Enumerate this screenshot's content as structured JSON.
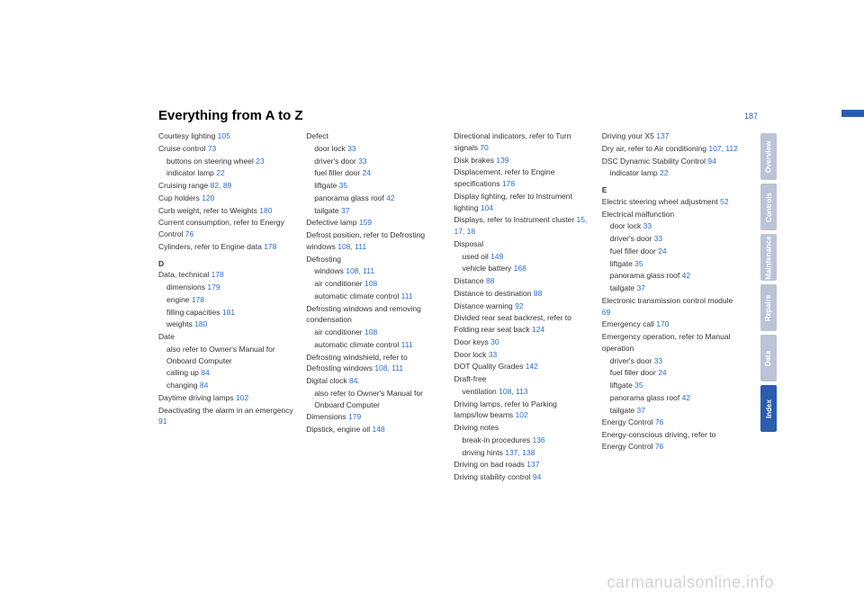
{
  "pageNumber": "187",
  "title": "Everything from A to Z",
  "watermark": "carmanualsonline.info",
  "tabs": [
    {
      "label": "Overview",
      "cls": "tab-muted"
    },
    {
      "label": "Controls",
      "cls": "tab-muted"
    },
    {
      "label": "Maintenance",
      "cls": "tab-muted"
    },
    {
      "label": "Repairs",
      "cls": "tab-muted"
    },
    {
      "label": "Data",
      "cls": "tab-muted"
    },
    {
      "label": "Index",
      "cls": "tab-index"
    }
  ],
  "cols": [
    [
      {
        "t": "Courtesy lighting ",
        "r": "105"
      },
      {
        "t": "Cruise control ",
        "r": "73"
      },
      {
        "t": "buttons on steering wheel ",
        "r": "23",
        "s": 1
      },
      {
        "t": "indicator lamp ",
        "r": "22",
        "s": 1
      },
      {
        "t": "Cruising range ",
        "r": "82, 89"
      },
      {
        "t": "Cup holders ",
        "r": "120"
      },
      {
        "t": "Curb weight, refer to Weights ",
        "r": "180"
      },
      {
        "t": "Current consumption, refer to Energy Control ",
        "r": "76"
      },
      {
        "t": "Cylinders, refer to Engine data ",
        "r": "178"
      },
      {
        "sec": "D"
      },
      {
        "t": "Data, technical ",
        "r": "178"
      },
      {
        "t": "dimensions ",
        "r": "179",
        "s": 1
      },
      {
        "t": "engine ",
        "r": "178",
        "s": 1
      },
      {
        "t": "filling capacities ",
        "r": "181",
        "s": 1
      },
      {
        "t": "weights ",
        "r": "180",
        "s": 1
      },
      {
        "t": "Date"
      },
      {
        "t": "also refer to Owner's Manual for Onboard Computer",
        "s": 1
      },
      {
        "t": "calling up ",
        "r": "84",
        "s": 1
      },
      {
        "t": "changing ",
        "r": "84",
        "s": 1
      },
      {
        "t": "Daytime driving lamps ",
        "r": "102"
      },
      {
        "t": "Deactivating the alarm in an emergency ",
        "r": "91"
      }
    ],
    [
      {
        "t": "Defect"
      },
      {
        "t": "door lock ",
        "r": "33",
        "s": 1
      },
      {
        "t": "driver's door ",
        "r": "33",
        "s": 1
      },
      {
        "t": "fuel filler door ",
        "r": "24",
        "s": 1
      },
      {
        "t": "liftgate ",
        "r": "35",
        "s": 1
      },
      {
        "t": "panorama glass roof ",
        "r": "42",
        "s": 1
      },
      {
        "t": "tailgate ",
        "r": "37",
        "s": 1
      },
      {
        "t": "Defective lamp ",
        "r": "159"
      },
      {
        "t": "Defrost position, refer to Defrosting windows ",
        "r": "108, 111"
      },
      {
        "t": "Defrosting"
      },
      {
        "t": "windows ",
        "r": "108, 111",
        "s": 1
      },
      {
        "t": "air conditioner ",
        "r": "108",
        "s": 1
      },
      {
        "t": "automatic climate control ",
        "r": "111",
        "s": 1
      },
      {
        "t": "Defrosting windows and removing condensation"
      },
      {
        "t": "air conditioner ",
        "r": "108",
        "s": 1
      },
      {
        "t": "automatic climate control ",
        "r": "111",
        "s": 1
      },
      {
        "t": "Defrosting windshield, refer to Defrosting windows ",
        "r": "108, 111"
      },
      {
        "t": "Digital clock ",
        "r": "84"
      },
      {
        "t": "also refer to Owner's Manual for Onboard Computer",
        "s": 1
      },
      {
        "t": "Dimensions ",
        "r": "179"
      },
      {
        "t": "Dipstick, engine oil ",
        "r": "148"
      }
    ],
    [
      {
        "t": "Directional indicators, refer to Turn signals ",
        "r": "70"
      },
      {
        "t": "Disk brakes ",
        "r": "139"
      },
      {
        "t": "Displacement, refer to Engine specifications ",
        "r": "178"
      },
      {
        "t": "Display lighting, refer to Instrument lighting ",
        "r": "104"
      },
      {
        "t": "Displays, refer to Instrument cluster ",
        "r": "15, 17, 18"
      },
      {
        "t": "Disposal"
      },
      {
        "t": "used oil ",
        "r": "149",
        "s": 1
      },
      {
        "t": "vehicle battery ",
        "r": "168",
        "s": 1
      },
      {
        "t": "Distance ",
        "r": "88"
      },
      {
        "t": "Distance to destination ",
        "r": "88"
      },
      {
        "t": "Distance warning ",
        "r": "92"
      },
      {
        "t": "Divided rear seat backrest, refer to Folding rear seat back ",
        "r": "124"
      },
      {
        "t": "Door keys ",
        "r": "30"
      },
      {
        "t": "Door lock ",
        "r": "33"
      },
      {
        "t": "DOT Quality Grades ",
        "r": "142"
      },
      {
        "t": "Draft-free"
      },
      {
        "t": "ventilation ",
        "r": "108, 113",
        "s": 1
      },
      {
        "t": "Driving lamps, refer to Parking lamps/low beams ",
        "r": "102"
      },
      {
        "t": "Driving notes"
      },
      {
        "t": "break-in procedures ",
        "r": "136",
        "s": 1
      },
      {
        "t": "driving hints ",
        "r": "137, 138",
        "s": 1
      },
      {
        "t": "Driving on bad roads ",
        "r": "137"
      },
      {
        "t": "Driving stability control ",
        "r": "94"
      }
    ],
    [
      {
        "t": "Driving your X5 ",
        "r": "137"
      },
      {
        "t": "Dry air, refer to Air conditioning ",
        "r": "107, 112"
      },
      {
        "t": "DSC Dynamic Stability Control ",
        "r": "94"
      },
      {
        "t": "indicator lamp ",
        "r": "22",
        "s": 1
      },
      {
        "sec": "E"
      },
      {
        "t": "Electric steering wheel adjustment ",
        "r": "52"
      },
      {
        "t": "Electrical malfunction"
      },
      {
        "t": "door lock ",
        "r": "33",
        "s": 1
      },
      {
        "t": "driver's door ",
        "r": "33",
        "s": 1
      },
      {
        "t": "fuel filler door ",
        "r": "24",
        "s": 1
      },
      {
        "t": "liftgate ",
        "r": "35",
        "s": 1
      },
      {
        "t": "panorama glass roof ",
        "r": "42",
        "s": 1
      },
      {
        "t": "tailgate ",
        "r": "37",
        "s": 1
      },
      {
        "t": "Electronic transmission control module ",
        "r": "69"
      },
      {
        "t": "Emergency call ",
        "r": "170"
      },
      {
        "t": "Emergency operation, refer to Manual operation"
      },
      {
        "t": "driver's door ",
        "r": "33",
        "s": 1
      },
      {
        "t": "fuel filler door ",
        "r": "24",
        "s": 1
      },
      {
        "t": "liftgate ",
        "r": "35",
        "s": 1
      },
      {
        "t": "panorama glass roof ",
        "r": "42",
        "s": 1
      },
      {
        "t": "tailgate ",
        "r": "37",
        "s": 1
      },
      {
        "t": "Energy Control ",
        "r": "76"
      },
      {
        "t": "Energy-conscious driving, refer to Energy Control ",
        "r": "76"
      }
    ]
  ]
}
